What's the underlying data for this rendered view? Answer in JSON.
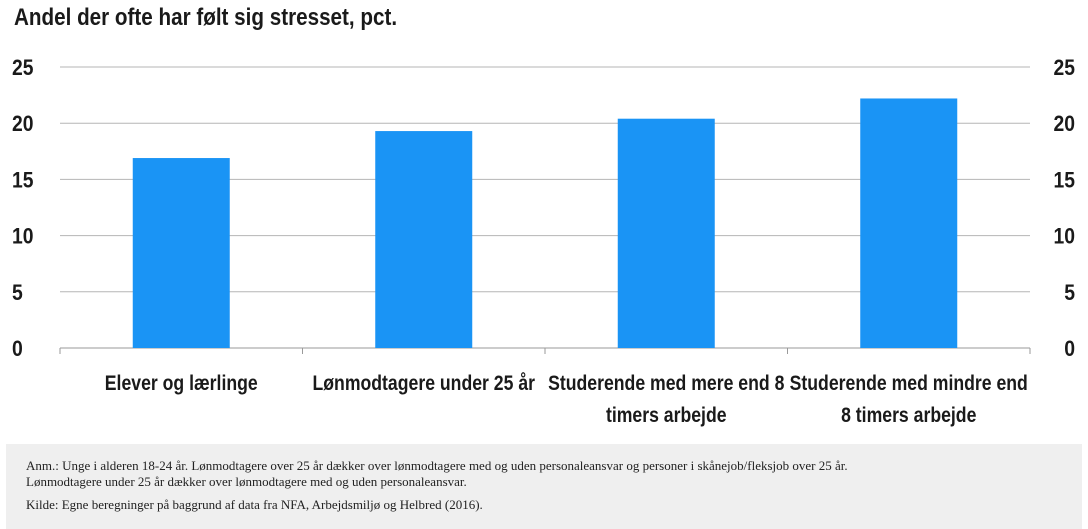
{
  "title": "Andel der ofte har følt sig stresset, pct.",
  "colors": {
    "bar": "#1a94f5",
    "grid": "#b5b5b5",
    "axis": "#9a9a9a",
    "note_bg": "#efefef"
  },
  "chart_data": {
    "type": "bar",
    "title": "Andel der ofte har følt sig stresset, pct.",
    "xlabel": "",
    "ylabel": "",
    "ylim": [
      0,
      25
    ],
    "yticks": [
      "0",
      "5",
      "10",
      "15",
      "20",
      "25"
    ],
    "y_axis_both_sides": true,
    "grid": true,
    "categories": [
      [
        "Elever og lærlinge"
      ],
      [
        "Lønmodtagere under 25 år"
      ],
      [
        "Studerende med mere end 8",
        "timers arbejde"
      ],
      [
        "Studerende med mindre end",
        "8 timers arbejde"
      ]
    ],
    "values": [
      16.9,
      19.3,
      20.4,
      22.2
    ]
  },
  "notes": {
    "anm_line1": "Anm.: Unge i alderen 18-24 år. Lønmodtagere over 25 år dækker over lønmodtagere med og uden personaleansvar og personer i skånejob/fleksjob over 25 år.",
    "anm_line2": "Lønmodtagere under 25 år dækker over lønmodtagere med og uden personaleansvar.",
    "source": "Kilde: Egne beregninger på baggrund af data fra NFA, Arbejdsmiljø og Helbred (2016)."
  }
}
